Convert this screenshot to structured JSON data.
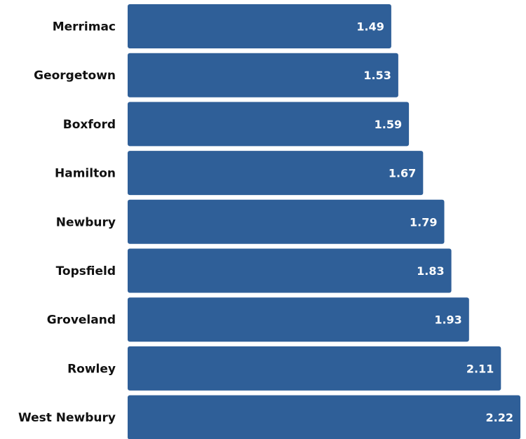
{
  "chart_data": {
    "type": "bar",
    "orientation": "horizontal",
    "categories": [
      "Merrimac",
      "Georgetown",
      "Boxford",
      "Hamilton",
      "Newbury",
      "Topsfield",
      "Groveland",
      "Rowley",
      "West Newbury"
    ],
    "values": [
      1.49,
      1.53,
      1.59,
      1.67,
      1.79,
      1.83,
      1.93,
      2.11,
      2.22
    ],
    "value_labels": [
      "1.49",
      "1.53",
      "1.59",
      "1.67",
      "1.79",
      "1.83",
      "1.93",
      "2.11",
      "2.22"
    ],
    "title": "",
    "xlabel": "",
    "ylabel": "",
    "xlim": [
      0,
      2.22
    ],
    "grid": false,
    "bar_color": "#2f5f98",
    "label_color": "#111111",
    "value_label_color": "#ffffff"
  }
}
